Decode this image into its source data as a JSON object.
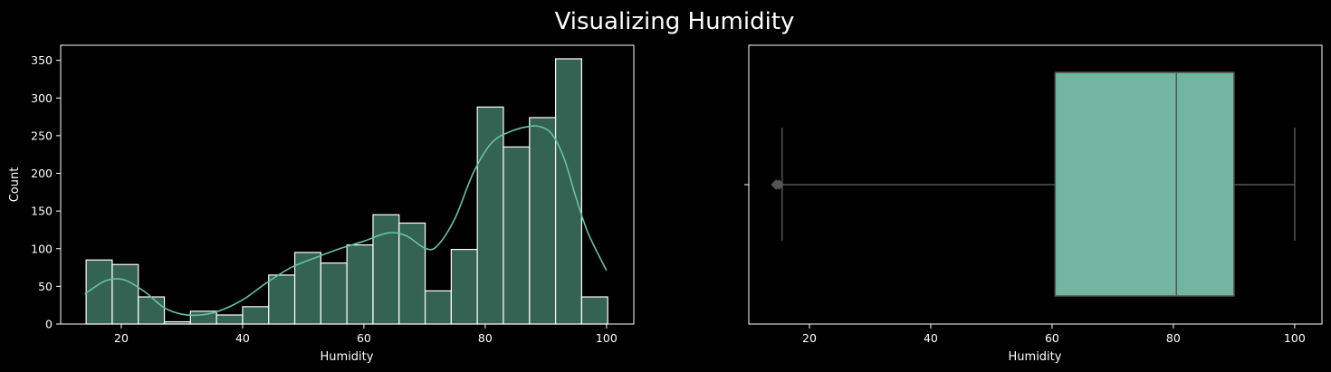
{
  "title": "Visualizing Humidity",
  "colors": {
    "background": "#000000",
    "bar_fill": "#346353",
    "bar_edge": "#ffffff",
    "kde_line": "#66c2a5",
    "box_fill": "#72b5a0",
    "box_line": "#555555",
    "axis": "#ffffff"
  },
  "chart_data": [
    {
      "type": "histogram",
      "xlabel": "Humidity",
      "ylabel": "Count",
      "xlim": [
        10,
        104.5
      ],
      "ylim": [
        0,
        370
      ],
      "xticks": [
        20,
        40,
        60,
        80,
        100
      ],
      "yticks": [
        0,
        50,
        100,
        150,
        200,
        250,
        300,
        350
      ],
      "bin_edges": [
        14.2,
        18.5,
        22.8,
        27.1,
        31.4,
        35.7,
        40.0,
        44.3,
        48.6,
        52.9,
        57.2,
        61.5,
        65.8,
        70.1,
        74.4,
        78.7,
        83.0,
        87.3,
        91.6,
        95.9,
        100.2
      ],
      "counts": [
        85,
        79,
        36,
        3,
        17,
        12,
        23,
        65,
        95,
        81,
        105,
        145,
        134,
        44,
        99,
        288,
        235,
        274,
        352,
        36
      ],
      "kde": {
        "x": [
          14,
          17,
          19,
          21,
          24,
          27,
          30,
          33,
          36,
          40,
          44,
          48,
          52,
          56,
          60,
          64,
          67,
          70,
          72,
          75,
          78,
          81,
          84,
          87,
          89,
          91,
          93,
          95,
          97,
          100
        ],
        "y": [
          40,
          56,
          60,
          57,
          42,
          22,
          13,
          12,
          17,
          32,
          55,
          75,
          88,
          100,
          110,
          121,
          117,
          101,
          103,
          140,
          200,
          240,
          255,
          262,
          262,
          252,
          220,
          167,
          120,
          71
        ]
      }
    },
    {
      "type": "box",
      "xlabel": "Humidity",
      "xlim": [
        10,
        104.5
      ],
      "xticks": [
        20,
        40,
        60,
        80,
        100
      ],
      "whisker_low": 15.5,
      "q1": 60.5,
      "median": 80.5,
      "q3": 90,
      "whisker_high": 100,
      "outliers": [
        14.5,
        15
      ]
    }
  ]
}
